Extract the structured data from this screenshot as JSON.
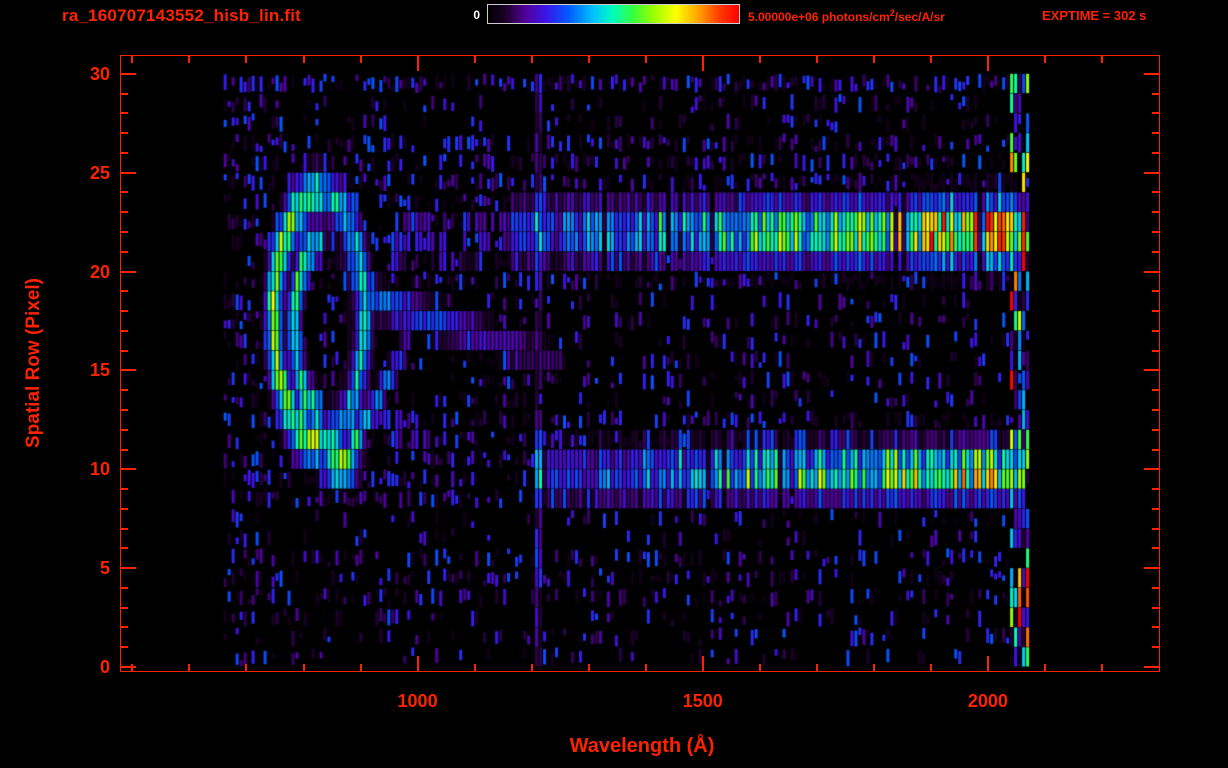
{
  "header": {
    "title": "ra_160707143552_hisb_lin.fit",
    "colorbar": {
      "min_label": "0",
      "max_value": "5.00000e+06",
      "units_prefix": "photons/cm",
      "units_sup": "2",
      "units_suffix": "/sec/A/sr"
    },
    "exptime_label": "EXPTIME = 302 s"
  },
  "colors": {
    "accent_red": "#ff2200",
    "background": "#000000",
    "colorbar_border": "#cccccc",
    "colorbar_min_label": "#ffffff"
  },
  "chart_data": {
    "type": "heatmap",
    "title": "ra_160707143552_hisb_lin.fit",
    "xlabel": "Wavelength (Å)",
    "ylabel": "Spatial Row (Pixel)",
    "xlim": [
      480,
      2300
    ],
    "ylim": [
      -0.2,
      30.9
    ],
    "x_ticks": [
      {
        "value": 1000,
        "label": "1000"
      },
      {
        "value": 1500,
        "label": "1500"
      },
      {
        "value": 2000,
        "label": "2000"
      }
    ],
    "x_minor": {
      "start": 500,
      "end": 2200,
      "step": 100
    },
    "y_ticks": [
      {
        "value": 0,
        "label": "0"
      },
      {
        "value": 5,
        "label": "5"
      },
      {
        "value": 10,
        "label": "10"
      },
      {
        "value": 15,
        "label": "15"
      },
      {
        "value": 20,
        "label": "20"
      },
      {
        "value": 25,
        "label": "25"
      },
      {
        "value": 30,
        "label": "30"
      }
    ],
    "y_minor": {
      "start": 1,
      "end": 30,
      "step": 1
    },
    "colorbar": {
      "min": 0,
      "max": 5000000,
      "units": "photons/cm^2/sec/A/sr",
      "colormap": "rainbow"
    },
    "exptime_seconds": 302,
    "seed": 20160707,
    "colormap_stops": [
      [
        0.0,
        0,
        0,
        0
      ],
      [
        0.07,
        28,
        0,
        40
      ],
      [
        0.15,
        82,
        0,
        155
      ],
      [
        0.23,
        60,
        20,
        235
      ],
      [
        0.32,
        0,
        90,
        255
      ],
      [
        0.42,
        0,
        195,
        255
      ],
      [
        0.5,
        0,
        255,
        185
      ],
      [
        0.58,
        55,
        255,
        60
      ],
      [
        0.66,
        155,
        255,
        0
      ],
      [
        0.75,
        255,
        255,
        0
      ],
      [
        0.84,
        255,
        160,
        0
      ],
      [
        0.92,
        255,
        60,
        0
      ],
      [
        1.0,
        255,
        0,
        0
      ]
    ],
    "grid": {
      "wavelength_start": 660,
      "wavelength_end": 2072,
      "bin_width": 7,
      "rows": 30
    },
    "bands": [
      {
        "name": "upper-spectrum-band",
        "row_center": 22.0,
        "row_sigma": 1.05,
        "profile": [
          [
            1165,
            0.22
          ],
          [
            1300,
            0.33
          ],
          [
            1500,
            0.46
          ],
          [
            1700,
            0.58
          ],
          [
            1850,
            0.7
          ],
          [
            1975,
            0.8
          ],
          [
            2040,
            0.77
          ],
          [
            2068,
            0.62
          ]
        ]
      },
      {
        "name": "lower-spectrum-band",
        "row_center": 9.8,
        "row_sigma": 0.9,
        "profile": [
          [
            1210,
            0.2
          ],
          [
            1400,
            0.34
          ],
          [
            1600,
            0.47
          ],
          [
            1800,
            0.58
          ],
          [
            1950,
            0.67
          ],
          [
            2040,
            0.63
          ],
          [
            2068,
            0.5
          ]
        ]
      }
    ],
    "rings": [
      {
        "name": "outer-loop",
        "center": [
          828,
          17.6
        ],
        "radius": [
          79,
          6.3
        ],
        "thickness": 0.13,
        "amp": 0.52,
        "left_boost": 1.2,
        "right_fade": 0.85
      },
      {
        "name": "inner-arc",
        "center": [
          836,
          17.2
        ],
        "radius": [
          52,
          4.3
        ],
        "thickness": 0.16,
        "amp": 0.34,
        "left_boost": 1.5,
        "right_fade": 0.25
      }
    ],
    "segments": [
      {
        "name": "v-right-branch",
        "from": [
          868,
          10.2
        ],
        "to": [
          992,
          16.8
        ],
        "amp_from": 0.55,
        "amp_to": 0.2,
        "row_sigma": 0.55,
        "sparse": 0
      },
      {
        "name": "diagonal-tail",
        "from": [
          900,
          18.8
        ],
        "to": [
          1255,
          15.4
        ],
        "amp_from": 0.36,
        "amp_to": 0.1,
        "row_sigma": 0.6,
        "sparse": 0
      },
      {
        "name": "lower-diagonal",
        "from": [
          905,
          13.2
        ],
        "to": [
          1040,
          11.0
        ],
        "amp_from": 0.3,
        "amp_to": 0.14,
        "row_sigma": 0.5,
        "sparse": 0.35
      },
      {
        "name": "upper-tail",
        "from": [
          945,
          21.7
        ],
        "to": [
          1175,
          22.0
        ],
        "amp_from": 0.22,
        "amp_to": 0.18,
        "row_sigma": 0.9,
        "sparse": 0.5
      }
    ],
    "spots": [
      {
        "name": "v-vertex-hotspot",
        "center": [
          866,
          10.2
        ],
        "sigma": [
          20,
          0.7
        ],
        "amp": 0.75
      }
    ],
    "vlines": [
      {
        "name": "lyman-alpha-airglow",
        "wavelength": 1216,
        "width": 14,
        "base_amp": 0.12,
        "blobs": [
          {
            "row": 9.9,
            "amp": 0.5,
            "sigma": 1.3
          },
          {
            "row": 22.0,
            "amp": 0.42,
            "sigma": 1.4
          }
        ]
      }
    ],
    "right_edge": {
      "range": [
        2038,
        2072
      ],
      "amp_max": 0.75,
      "fill_prob": 0.8,
      "red_prob": 0.06
    },
    "red_dashes": [
      {
        "wavelength": 2062,
        "rows": [
          20.5,
          23.2
        ]
      },
      {
        "wavelength": 2058,
        "rows": [
          1.6,
          4.6
        ]
      }
    ],
    "noise": {
      "base_prob": 0.2,
      "amp": 0.16,
      "blue_prob": 0.15,
      "left_cluster_max_wavelength": 730,
      "left_cluster_prob": 0.55,
      "stripe_rows": [
        [
          3.2,
          5.6,
          0.45
        ],
        [
          5.6,
          7.6,
          0.22
        ],
        [
          7.6,
          12.6,
          0.5
        ],
        [
          13.0,
          19.0,
          0.3
        ],
        [
          19.0,
          24.6,
          0.52
        ],
        [
          25.0,
          26.6,
          0.55
        ],
        [
          26.6,
          28.8,
          0.3
        ],
        [
          28.8,
          30.4,
          0.7
        ]
      ]
    }
  }
}
